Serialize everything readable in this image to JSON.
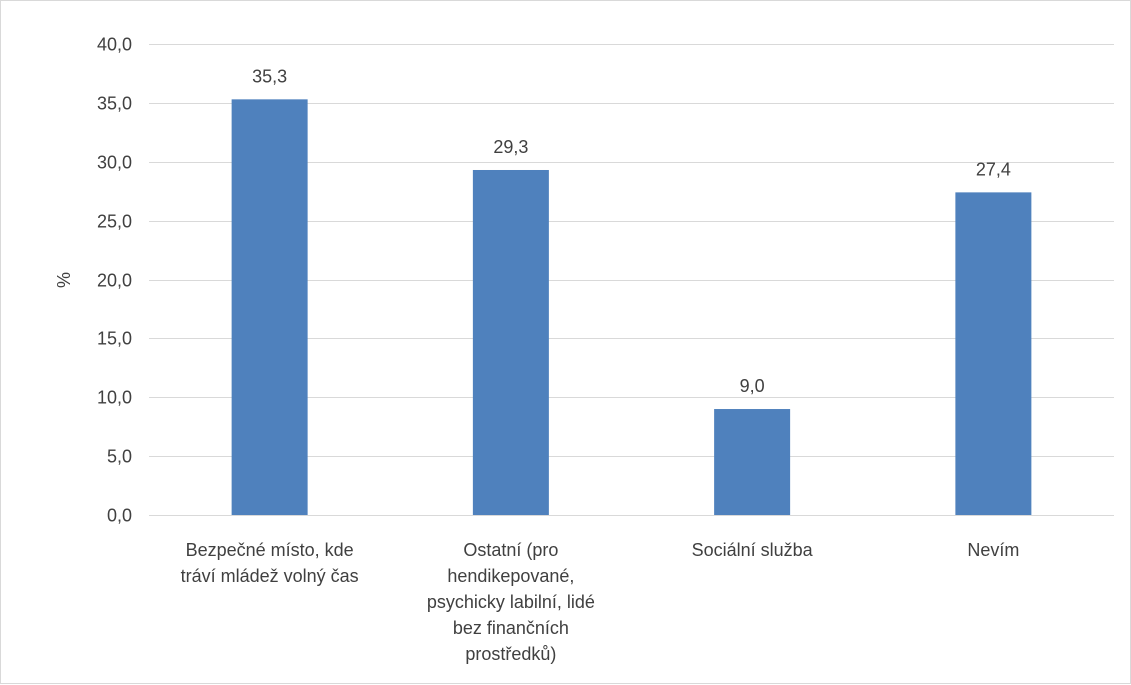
{
  "chart_data": {
    "type": "bar",
    "title": "",
    "xlabel": "",
    "ylabel": "%",
    "ylim": [
      0,
      40
    ],
    "ytick_step": 5,
    "yticks": [
      "0,0",
      "5,0",
      "10,0",
      "15,0",
      "20,0",
      "25,0",
      "30,0",
      "35,0",
      "40,0"
    ],
    "grid": true,
    "legend": "none",
    "categories": [
      [
        "Bezpečné místo, kde",
        "tráví mládež volný čas"
      ],
      [
        "Ostatní (pro",
        "hendikepované,",
        "psychicky labilní, lidé",
        "bez finančních",
        "prostředků)"
      ],
      [
        "Sociální služba"
      ],
      [
        "Nevím"
      ]
    ],
    "values": [
      35.3,
      29.3,
      9.0,
      27.4
    ],
    "value_labels": [
      "35,3",
      "29,3",
      "9,0",
      "27,4"
    ],
    "bar_color": "#4f81bd",
    "grid_color": "#d9d9d9",
    "text_color": "#404040"
  }
}
